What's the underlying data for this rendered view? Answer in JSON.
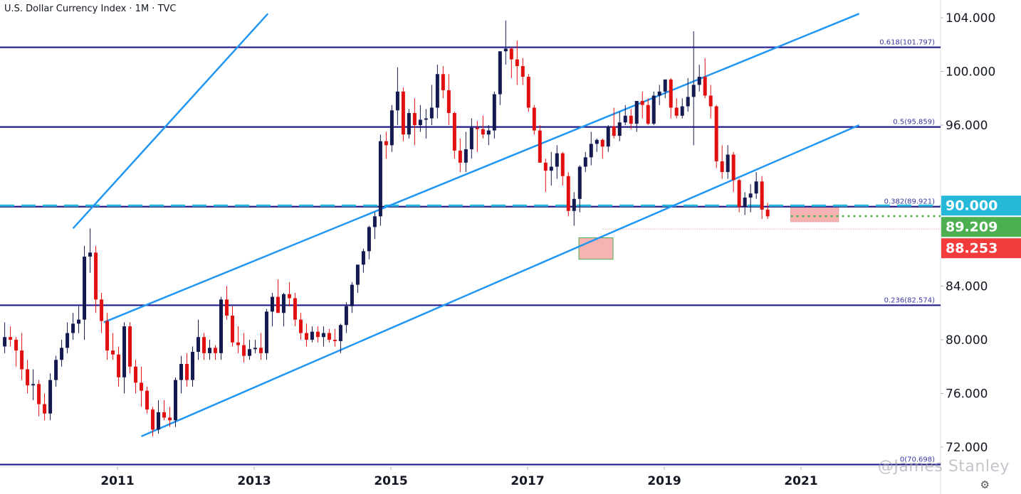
{
  "header": {
    "title": "U.S. Dollar Currency Index · 1M · TVC"
  },
  "watermark": "@James Stanley",
  "icons": {
    "settings": "gear-icon"
  },
  "colors": {
    "up": "#131a4f",
    "down": "#e01010",
    "channel": "#2196f3",
    "fib": "#1f1b8a",
    "cyan": "#25b8d9",
    "green": "#4caf50",
    "red": "#f23c3c"
  },
  "chart_data": {
    "type": "candlestick",
    "ylim": [
      70.5,
      104.3
    ],
    "ylabel": "",
    "y_ticks": [
      "72.000",
      "76.000",
      "80.000",
      "84.000",
      "96.000",
      "100.000",
      "104.000"
    ],
    "x_ticks": [
      "2011",
      "2013",
      "2015",
      "2017",
      "2019",
      "2021"
    ],
    "x_tick_years": [
      2011,
      2013,
      2015,
      2017,
      2019,
      2021
    ],
    "x_range": [
      2009.35,
      2021.85
    ],
    "fib_levels": [
      {
        "label": "0.618(101.797)",
        "value": 101.797
      },
      {
        "label": "0.5(95.859)",
        "value": 95.859
      },
      {
        "label": "0.382(89.921)",
        "value": 89.921
      },
      {
        "label": "0.236(82.574)",
        "value": 82.574
      },
      {
        "label": "0(70.698)",
        "value": 70.698
      }
    ],
    "price_labels": [
      {
        "text": "90.000",
        "value": 90.0,
        "color": "#25b8d9"
      },
      {
        "text": "89.209",
        "value": 89.209,
        "color": "#4caf50"
      },
      {
        "text": "88.253",
        "value": 88.253,
        "color": "#f23c3c"
      }
    ],
    "horizontal_refs": [
      {
        "value": 90.0,
        "style": "dashed",
        "color": "#25b8d9"
      },
      {
        "value": 89.209,
        "style": "dotted",
        "color": "#4caf50"
      }
    ],
    "channel_lines": [
      {
        "x1": 2010.35,
        "y1": 88.3,
        "x2": 2013.2,
        "y2": 104.3
      },
      {
        "x1": 2010.8,
        "y1": 81.3,
        "x2": 2021.85,
        "y2": 104.3
      },
      {
        "x1": 2011.35,
        "y1": 72.8,
        "x2": 2021.85,
        "y2": 96.0
      }
    ],
    "zones": [
      {
        "x1": 2017.75,
        "x2": 2018.25,
        "y1": 87.6,
        "y2": 86.0,
        "fill": "#f6a6a3"
      },
      {
        "x1": 2020.85,
        "x2": 2021.55,
        "y1": 89.9,
        "y2": 88.8,
        "fill": "#f6a6a3"
      }
    ],
    "start": 2009.35,
    "step": 0.0833,
    "candles": [
      [
        79.5,
        81.3,
        79.0,
        80.2
      ],
      [
        80.2,
        81.0,
        79.5,
        80.0
      ],
      [
        80.0,
        80.2,
        78.0,
        79.2
      ],
      [
        79.2,
        80.5,
        77.0,
        77.8
      ],
      [
        77.8,
        78.5,
        76.0,
        76.6
      ],
      [
        76.6,
        77.8,
        75.5,
        76.7
      ],
      [
        76.7,
        77.0,
        74.3,
        75.2
      ],
      [
        75.2,
        76.0,
        74.0,
        74.5
      ],
      [
        74.5,
        77.5,
        74.0,
        77.0
      ],
      [
        77.0,
        78.8,
        76.5,
        78.5
      ],
      [
        78.5,
        80.0,
        78.0,
        79.4
      ],
      [
        79.4,
        81.3,
        79.0,
        80.5
      ],
      [
        80.5,
        82.0,
        80.0,
        81.2
      ],
      [
        81.2,
        82.5,
        80.5,
        81.5
      ],
      [
        81.5,
        87.0,
        80.0,
        86.2
      ],
      [
        86.2,
        88.3,
        85.0,
        86.5
      ],
      [
        86.5,
        87.0,
        82.0,
        83.0
      ],
      [
        83.0,
        83.5,
        80.5,
        81.4
      ],
      [
        81.4,
        82.0,
        78.5,
        79.2
      ],
      [
        79.2,
        80.5,
        78.5,
        78.9
      ],
      [
        78.9,
        79.5,
        76.5,
        77.2
      ],
      [
        77.2,
        81.3,
        76.0,
        81.0
      ],
      [
        81.0,
        81.3,
        77.5,
        78.0
      ],
      [
        78.0,
        78.5,
        76.0,
        76.8
      ],
      [
        76.8,
        78.0,
        75.0,
        76.2
      ],
      [
        76.2,
        76.5,
        74.5,
        74.8
      ],
      [
        74.8,
        75.0,
        72.8,
        73.3
      ],
      [
        73.3,
        75.5,
        73.0,
        74.6
      ],
      [
        74.6,
        75.5,
        74.0,
        74.2
      ],
      [
        74.2,
        75.0,
        73.5,
        74.0
      ],
      [
        74.0,
        77.2,
        73.5,
        77.0
      ],
      [
        77.0,
        78.8,
        76.0,
        78.2
      ],
      [
        78.2,
        79.0,
        76.5,
        77.0
      ],
      [
        77.0,
        79.5,
        76.5,
        79.1
      ],
      [
        79.1,
        81.5,
        78.5,
        80.2
      ],
      [
        80.2,
        80.5,
        78.5,
        79.0
      ],
      [
        79.0,
        80.0,
        78.5,
        79.4
      ],
      [
        79.4,
        79.6,
        78.5,
        79.0
      ],
      [
        79.0,
        83.2,
        78.5,
        83.0
      ],
      [
        83.0,
        84.0,
        81.5,
        81.8
      ],
      [
        81.8,
        82.5,
        79.5,
        79.8
      ],
      [
        79.8,
        81.0,
        79.0,
        79.6
      ],
      [
        79.6,
        80.5,
        78.3,
        78.8
      ],
      [
        78.8,
        80.0,
        78.5,
        79.3
      ],
      [
        79.3,
        80.0,
        79.0,
        79.4
      ],
      [
        79.4,
        80.5,
        78.5,
        79.0
      ],
      [
        79.0,
        82.3,
        78.5,
        82.1
      ],
      [
        82.1,
        83.5,
        81.0,
        83.2
      ],
      [
        83.2,
        84.5,
        82.0,
        82.0
      ],
      [
        82.0,
        83.5,
        81.0,
        83.4
      ],
      [
        83.4,
        84.3,
        82.5,
        83.1
      ],
      [
        83.1,
        83.5,
        81.0,
        81.5
      ],
      [
        81.5,
        82.0,
        80.0,
        80.5
      ],
      [
        80.5,
        81.2,
        79.5,
        80.0
      ],
      [
        80.0,
        81.0,
        79.8,
        80.6
      ],
      [
        80.6,
        81.0,
        79.8,
        80.2
      ],
      [
        80.2,
        81.0,
        79.5,
        80.5
      ],
      [
        80.5,
        80.8,
        79.8,
        80.0
      ],
      [
        80.0,
        80.8,
        79.5,
        79.9
      ],
      [
        79.9,
        81.2,
        79.0,
        81.1
      ],
      [
        81.1,
        82.8,
        80.5,
        82.5
      ],
      [
        82.5,
        84.3,
        82.0,
        84.1
      ],
      [
        84.1,
        85.5,
        83.5,
        85.6
      ],
      [
        85.6,
        86.8,
        85.0,
        86.6
      ],
      [
        86.6,
        88.5,
        86.0,
        88.4
      ],
      [
        88.4,
        89.5,
        87.5,
        89.2
      ],
      [
        89.2,
        95.3,
        88.5,
        94.8
      ],
      [
        94.8,
        95.5,
        93.5,
        94.5
      ],
      [
        94.5,
        97.5,
        94.0,
        97.1
      ],
      [
        97.1,
        100.3,
        96.0,
        98.5
      ],
      [
        98.5,
        98.8,
        94.8,
        95.3
      ],
      [
        95.3,
        97.2,
        95.0,
        96.9
      ],
      [
        96.9,
        98.0,
        94.5,
        96.0
      ],
      [
        96.0,
        97.5,
        95.5,
        96.4
      ],
      [
        96.4,
        97.2,
        95.0,
        96.5
      ],
      [
        96.5,
        99.0,
        96.0,
        97.3
      ],
      [
        97.3,
        100.5,
        96.5,
        99.8
      ],
      [
        99.8,
        100.4,
        98.0,
        98.6
      ],
      [
        98.6,
        99.8,
        96.0,
        96.9
      ],
      [
        96.9,
        97.0,
        93.5,
        94.1
      ],
      [
        94.1,
        95.0,
        92.5,
        93.2
      ],
      [
        93.2,
        95.5,
        92.5,
        94.2
      ],
      [
        94.2,
        96.5,
        93.5,
        95.8
      ],
      [
        95.8,
        96.3,
        94.0,
        95.7
      ],
      [
        95.7,
        96.7,
        95.0,
        95.3
      ],
      [
        95.3,
        96.0,
        94.5,
        95.6
      ],
      [
        95.6,
        98.5,
        95.0,
        98.3
      ],
      [
        98.3,
        101.5,
        97.5,
        101.5
      ],
      [
        101.5,
        103.8,
        100.5,
        101.7
      ],
      [
        101.7,
        101.8,
        99.5,
        100.9
      ],
      [
        100.9,
        102.3,
        99.0,
        100.4
      ],
      [
        100.4,
        101.0,
        99.0,
        99.6
      ],
      [
        99.6,
        99.8,
        97.0,
        97.3
      ],
      [
        97.3,
        97.5,
        95.3,
        95.6
      ],
      [
        95.6,
        96.0,
        93.2,
        93.2
      ],
      [
        93.2,
        93.5,
        91.0,
        92.6
      ],
      [
        92.6,
        94.0,
        91.5,
        92.9
      ],
      [
        92.9,
        94.5,
        92.0,
        93.9
      ],
      [
        93.9,
        94.0,
        91.5,
        92.2
      ],
      [
        92.2,
        92.5,
        89.2,
        89.6
      ],
      [
        89.6,
        91.0,
        88.5,
        90.5
      ],
      [
        90.5,
        93.0,
        89.5,
        92.9
      ],
      [
        92.9,
        94.0,
        92.5,
        93.6
      ],
      [
        93.6,
        95.5,
        93.0,
        94.6
      ],
      [
        94.6,
        95.0,
        94.0,
        94.9
      ],
      [
        94.9,
        95.0,
        93.5,
        94.4
      ],
      [
        94.4,
        96.0,
        94.0,
        95.9
      ],
      [
        95.9,
        97.3,
        95.0,
        95.2
      ],
      [
        95.2,
        97.0,
        94.8,
        96.2
      ],
      [
        96.2,
        97.5,
        96.0,
        96.7
      ],
      [
        96.7,
        97.2,
        95.7,
        96.1
      ],
      [
        96.1,
        97.5,
        95.5,
        97.8
      ],
      [
        97.8,
        98.5,
        96.5,
        97.5
      ],
      [
        97.5,
        98.0,
        96.0,
        96.1
      ],
      [
        96.1,
        98.5,
        96.0,
        98.2
      ],
      [
        98.2,
        99.0,
        97.5,
        98.5
      ],
      [
        98.5,
        99.4,
        98.0,
        99.4
      ],
      [
        99.4,
        99.5,
        96.5,
        97.3
      ],
      [
        97.3,
        98.0,
        96.5,
        96.7
      ],
      [
        96.7,
        98.0,
        96.5,
        97.4
      ],
      [
        97.4,
        99.5,
        97.0,
        98.1
      ],
      [
        98.1,
        103.0,
        94.5,
        99.0
      ],
      [
        99.0,
        100.5,
        98.5,
        99.6
      ],
      [
        99.6,
        101.0,
        98.0,
        98.2
      ],
      [
        98.2,
        99.0,
        96.5,
        97.4
      ],
      [
        97.4,
        97.5,
        92.8,
        93.3
      ],
      [
        93.3,
        94.5,
        92.0,
        92.5
      ],
      [
        92.5,
        94.5,
        92.0,
        93.8
      ],
      [
        93.8,
        94.0,
        91.0,
        91.9
      ],
      [
        91.9,
        92.0,
        89.5,
        89.9
      ],
      [
        89.9,
        91.0,
        89.3,
        90.6
      ],
      [
        90.6,
        91.6,
        89.5,
        90.9
      ],
      [
        90.9,
        92.5,
        90.5,
        91.8
      ],
      [
        91.8,
        92.2,
        89.0,
        89.7
      ],
      [
        89.7,
        90.2,
        89.0,
        89.2
      ]
    ]
  }
}
